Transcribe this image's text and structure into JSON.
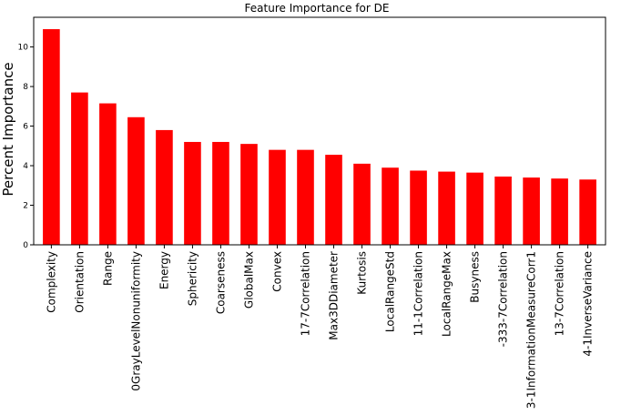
{
  "chart_data": {
    "type": "bar",
    "title": "Feature Importance for DE",
    "xlabel": "",
    "ylabel": "Percent Importance",
    "ylim": [
      0,
      11.5
    ],
    "yticks": [
      0,
      2,
      4,
      6,
      8,
      10
    ],
    "grid": false,
    "color": "#ff0000",
    "categories": [
      "Complexity",
      "Orientation",
      "Range",
      "0GrayLevelNonuniformity",
      "Energy",
      "Sphericity",
      "Coarseness",
      "GlobalMax",
      "Convex",
      "17-7Correlation",
      "Max3DDiameter",
      "Kurtosis",
      "LocalRangeStd",
      "11-1Correlation",
      "LocalRangeMax",
      "Busyness",
      "-333-7Correlation",
      "3-1InformationMeasureCorr1",
      "13-7Correlation",
      "4-1InverseVariance"
    ],
    "values": [
      10.9,
      7.7,
      7.15,
      6.45,
      5.8,
      5.2,
      5.2,
      5.1,
      4.8,
      4.8,
      4.55,
      4.1,
      3.9,
      3.75,
      3.7,
      3.65,
      3.45,
      3.4,
      3.35,
      3.3
    ]
  }
}
